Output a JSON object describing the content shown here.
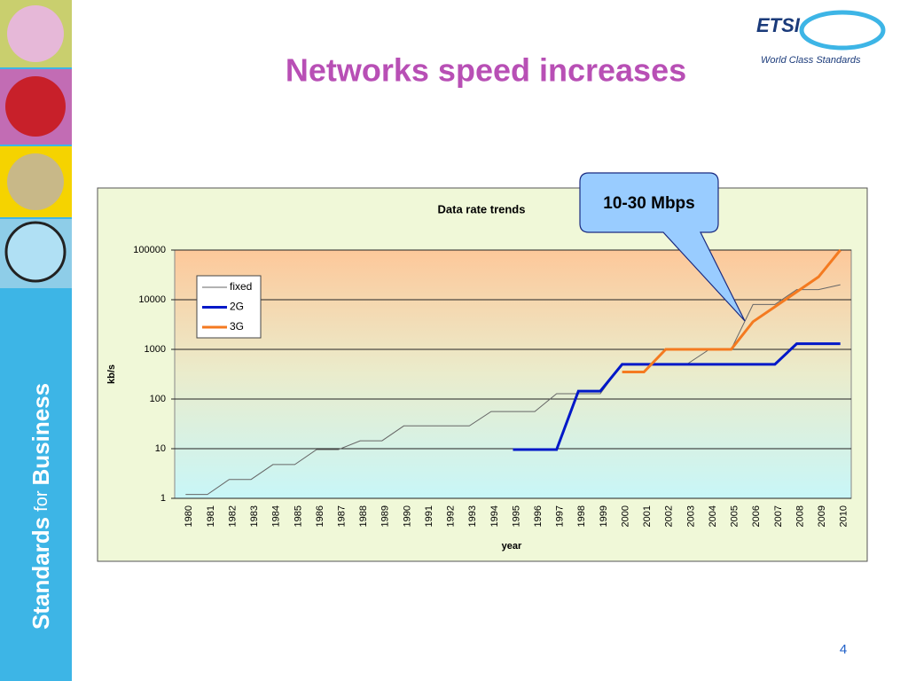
{
  "slide": {
    "title": "Networks speed increases",
    "logo": {
      "name": "ETSI",
      "tagline": "World Class Standards"
    },
    "sidebar": [
      "Standards",
      "for",
      "Business"
    ],
    "page_number": "4"
  },
  "chart_data": {
    "type": "line",
    "title": "Data rate trends",
    "x_label": "year",
    "y_label": "kb/s",
    "categories": [
      "1980",
      "1981",
      "1982",
      "1983",
      "1984",
      "1985",
      "1986",
      "1987",
      "1988",
      "1989",
      "1990",
      "1991",
      "1992",
      "1993",
      "1994",
      "1995",
      "1996",
      "1997",
      "1998",
      "1999",
      "2000",
      "2001",
      "2002",
      "2003",
      "2004",
      "2005",
      "2006",
      "2007",
      "2008",
      "2009",
      "2010"
    ],
    "series": [
      {
        "name": "fixed",
        "color": "#666666",
        "width": 1,
        "values": [
          1.2,
          1.2,
          2.4,
          2.4,
          4.8,
          4.8,
          9.6,
          9.6,
          14.4,
          14.4,
          28.8,
          28.8,
          28.8,
          28.8,
          56,
          56,
          56,
          128,
          128,
          128,
          512,
          512,
          512,
          512,
          1000,
          1000,
          8000,
          8000,
          16000,
          16000,
          20000
        ]
      },
      {
        "name": "2G",
        "color": "#0018c8",
        "width": 3,
        "values": [
          null,
          null,
          null,
          null,
          null,
          null,
          null,
          null,
          null,
          null,
          null,
          null,
          null,
          null,
          null,
          9.6,
          9.6,
          9.6,
          144,
          144,
          500,
          500,
          500,
          500,
          500,
          500,
          500,
          500,
          1300,
          1300,
          1300
        ]
      },
      {
        "name": "3G",
        "color": "#f47a20",
        "width": 3,
        "values": [
          null,
          null,
          null,
          null,
          null,
          null,
          null,
          null,
          null,
          null,
          null,
          null,
          null,
          null,
          null,
          null,
          null,
          null,
          null,
          null,
          350,
          350,
          1000,
          1000,
          1000,
          1000,
          3600,
          7200,
          14400,
          28800,
          100000
        ]
      }
    ],
    "ylim": [
      1,
      100000
    ],
    "yticks": [
      1,
      10,
      100,
      1000,
      10000,
      100000
    ],
    "log_y": true,
    "grid": true,
    "legend": "top-left",
    "annotations": [
      {
        "text": "10-30 Mbps"
      }
    ]
  }
}
